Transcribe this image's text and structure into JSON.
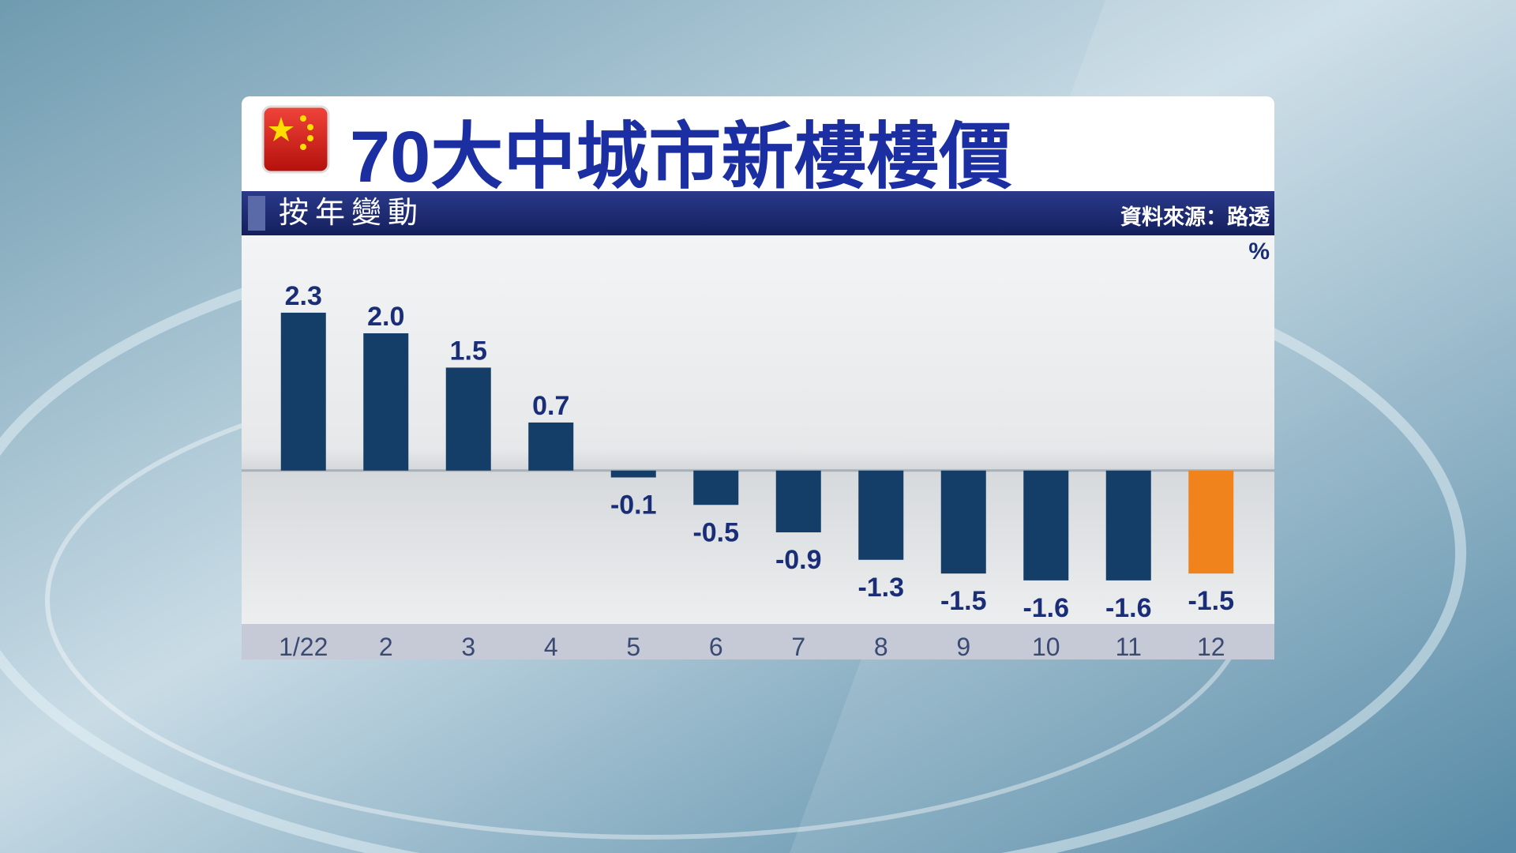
{
  "chart_data": {
    "type": "bar",
    "title": "70大中城市新樓樓價",
    "subtitle": "按年變動",
    "source": "資料來源：路透",
    "unit": "%",
    "categories": [
      "1/22",
      "2",
      "3",
      "4",
      "5",
      "6",
      "7",
      "8",
      "9",
      "10",
      "11",
      "12"
    ],
    "values": [
      2.3,
      2.0,
      1.5,
      0.7,
      -0.1,
      -0.5,
      -0.9,
      -1.3,
      -1.5,
      -1.6,
      -1.6,
      -1.5
    ],
    "value_labels": [
      "2.3",
      "2.0",
      "1.5",
      "0.7",
      "-0.1",
      "-0.5",
      "-0.9",
      "-1.3",
      "-1.5",
      "-1.6",
      "-1.6",
      "-1.5"
    ],
    "colors": [
      "#143d68",
      "#143d68",
      "#143d68",
      "#143d68",
      "#143d68",
      "#143d68",
      "#143d68",
      "#143d68",
      "#143d68",
      "#143d68",
      "#143d68",
      "#f0831c"
    ],
    "ylim": [
      -2.2,
      3.3
    ]
  }
}
